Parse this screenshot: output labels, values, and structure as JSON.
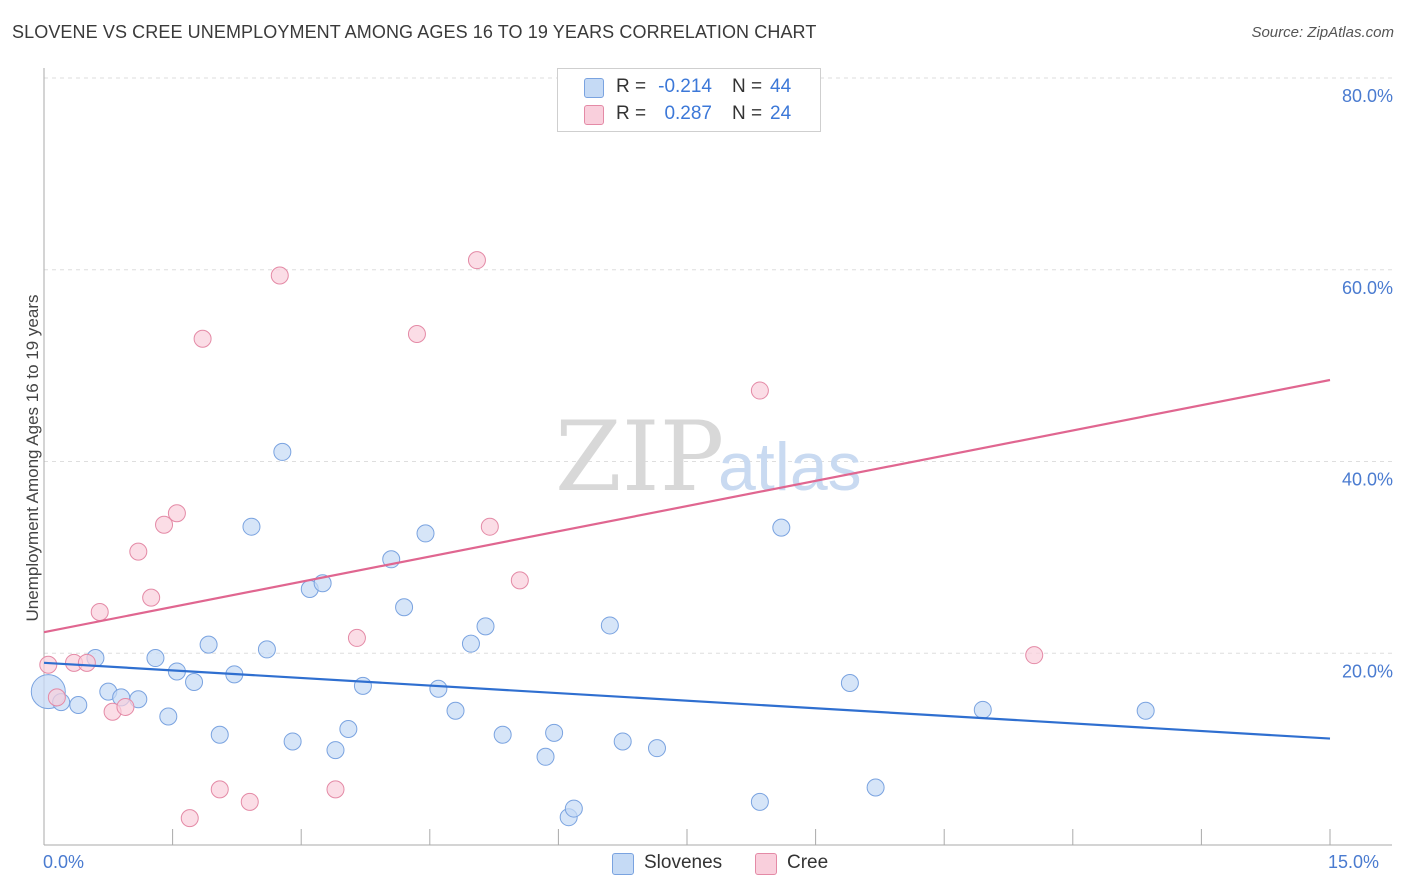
{
  "title": "SLOVENE VS CREE UNEMPLOYMENT AMONG AGES 16 TO 19 YEARS CORRELATION CHART",
  "source": "Source: ZipAtlas.com",
  "watermark": {
    "zip": "ZIP",
    "atlas": "atlas"
  },
  "legend": {
    "rows": [
      {
        "swatch_color": "#aecbf0",
        "r_label": "R =",
        "r_value": "-0.214",
        "n_label": "N =",
        "n_value": "44"
      },
      {
        "swatch_color": "#f8c0d0",
        "r_label": "R =",
        "r_value": "0.287",
        "n_label": "N =",
        "n_value": "24"
      }
    ]
  },
  "bottom_legend": [
    {
      "label": "Slovenes",
      "color": "#aecbf0"
    },
    {
      "label": "Cree",
      "color": "#f8c0d0"
    }
  ],
  "x_tick_labels": {
    "left": "0.0%",
    "right": "15.0%"
  },
  "colors": {
    "slovenes_fill": "#c5daf5",
    "slovenes_stroke": "#7aa3e0",
    "slovenes_line": "#2f6fd0",
    "cree_fill": "#f9cfdc",
    "cree_stroke": "#e48aa6",
    "cree_line": "#e06690",
    "grid": "#dedede",
    "tick_text": "#4a7bd0"
  },
  "chart_data": {
    "type": "scatter",
    "title": "SLOVENE VS CREE UNEMPLOYMENT AMONG AGES 16 TO 19 YEARS CORRELATION CHART",
    "xlabel": "",
    "ylabel": "Unemployment Among Ages 16 to 19 years",
    "xlim": [
      0,
      15
    ],
    "ylim": [
      0,
      80
    ],
    "x_ticks": [
      0,
      1.5,
      3,
      4.5,
      6,
      7.5,
      9,
      10.5,
      12,
      13.5,
      15
    ],
    "y_ticks": [
      {
        "value": 20,
        "label": "20.0%"
      },
      {
        "value": 40,
        "label": "40.0%"
      },
      {
        "value": 60,
        "label": "60.0%"
      },
      {
        "value": 80,
        "label": "80.0%"
      }
    ],
    "grid": true,
    "series": [
      {
        "name": "Slovenes",
        "R": -0.214,
        "N": 44,
        "trend": {
          "x": [
            0,
            15
          ],
          "y": [
            19.0,
            11.1
          ]
        },
        "points": [
          {
            "x": 0.05,
            "y": 16.0,
            "big": true
          },
          {
            "x": 0.2,
            "y": 14.9
          },
          {
            "x": 0.4,
            "y": 14.6
          },
          {
            "x": 0.6,
            "y": 19.5
          },
          {
            "x": 0.75,
            "y": 16.0
          },
          {
            "x": 0.9,
            "y": 15.4
          },
          {
            "x": 1.1,
            "y": 15.2
          },
          {
            "x": 1.3,
            "y": 19.5
          },
          {
            "x": 1.45,
            "y": 13.4
          },
          {
            "x": 1.55,
            "y": 18.1
          },
          {
            "x": 1.75,
            "y": 17.0
          },
          {
            "x": 1.92,
            "y": 20.9
          },
          {
            "x": 2.05,
            "y": 11.5
          },
          {
            "x": 2.22,
            "y": 17.8
          },
          {
            "x": 2.42,
            "y": 33.2
          },
          {
            "x": 2.6,
            "y": 20.4
          },
          {
            "x": 2.78,
            "y": 41.0
          },
          {
            "x": 2.9,
            "y": 10.8
          },
          {
            "x": 3.1,
            "y": 26.7
          },
          {
            "x": 3.25,
            "y": 27.3
          },
          {
            "x": 3.4,
            "y": 9.9
          },
          {
            "x": 3.55,
            "y": 12.1
          },
          {
            "x": 3.72,
            "y": 16.6
          },
          {
            "x": 4.05,
            "y": 29.8
          },
          {
            "x": 4.2,
            "y": 24.8
          },
          {
            "x": 4.45,
            "y": 32.5
          },
          {
            "x": 4.6,
            "y": 16.3
          },
          {
            "x": 4.8,
            "y": 14.0
          },
          {
            "x": 4.98,
            "y": 21.0
          },
          {
            "x": 5.15,
            "y": 22.8
          },
          {
            "x": 5.35,
            "y": 11.5
          },
          {
            "x": 5.85,
            "y": 9.2
          },
          {
            "x": 5.95,
            "y": 11.7
          },
          {
            "x": 6.12,
            "y": 2.9
          },
          {
            "x": 6.18,
            "y": 3.8
          },
          {
            "x": 6.6,
            "y": 22.9
          },
          {
            "x": 6.75,
            "y": 10.8
          },
          {
            "x": 7.15,
            "y": 10.1
          },
          {
            "x": 8.35,
            "y": 4.5
          },
          {
            "x": 8.6,
            "y": 33.1
          },
          {
            "x": 9.4,
            "y": 16.9
          },
          {
            "x": 9.7,
            "y": 6.0
          },
          {
            "x": 10.95,
            "y": 14.1
          },
          {
            "x": 12.85,
            "y": 14.0
          }
        ]
      },
      {
        "name": "Cree",
        "R": 0.287,
        "N": 24,
        "trend": {
          "x": [
            0,
            15
          ],
          "y": [
            22.2,
            48.5
          ]
        },
        "points": [
          {
            "x": 0.05,
            "y": 18.8
          },
          {
            "x": 0.15,
            "y": 15.4
          },
          {
            "x": 0.35,
            "y": 19.0
          },
          {
            "x": 0.5,
            "y": 19.0
          },
          {
            "x": 0.65,
            "y": 24.3
          },
          {
            "x": 0.8,
            "y": 13.9
          },
          {
            "x": 0.95,
            "y": 14.4
          },
          {
            "x": 1.1,
            "y": 30.6
          },
          {
            "x": 1.25,
            "y": 25.8
          },
          {
            "x": 1.4,
            "y": 33.4
          },
          {
            "x": 1.55,
            "y": 34.6
          },
          {
            "x": 1.7,
            "y": 2.8
          },
          {
            "x": 1.85,
            "y": 52.8
          },
          {
            "x": 2.05,
            "y": 5.8
          },
          {
            "x": 2.4,
            "y": 4.5
          },
          {
            "x": 2.75,
            "y": 59.4
          },
          {
            "x": 3.4,
            "y": 5.8
          },
          {
            "x": 3.65,
            "y": 21.6
          },
          {
            "x": 4.35,
            "y": 53.3
          },
          {
            "x": 5.05,
            "y": 61.0
          },
          {
            "x": 5.2,
            "y": 33.2
          },
          {
            "x": 5.55,
            "y": 27.6
          },
          {
            "x": 8.35,
            "y": 47.4
          },
          {
            "x": 11.55,
            "y": 19.8
          }
        ]
      }
    ]
  }
}
